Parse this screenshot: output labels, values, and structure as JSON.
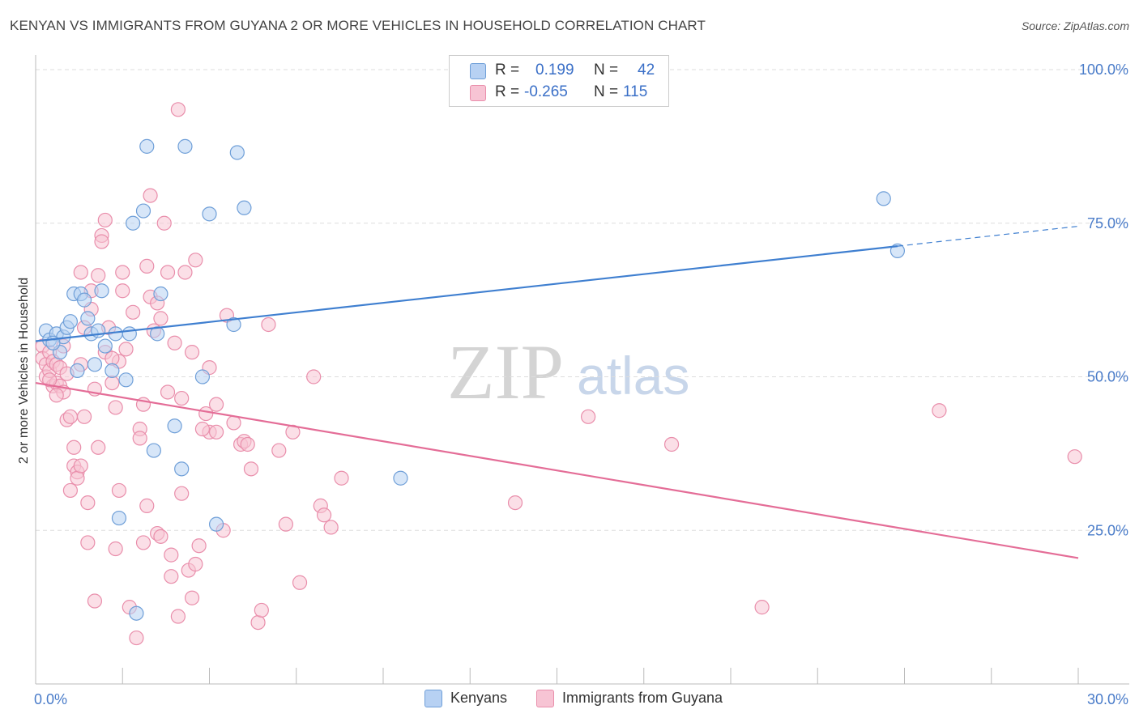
{
  "header": {
    "title": "KENYAN VS IMMIGRANTS FROM GUYANA 2 OR MORE VEHICLES IN HOUSEHOLD CORRELATION CHART",
    "source": "Source: ZipAtlas.com"
  },
  "stats": {
    "r_label": "R =",
    "n_label": "N =",
    "rows": [
      {
        "r": "0.199",
        "n": "42"
      },
      {
        "r": "-0.265",
        "n": "115"
      }
    ]
  },
  "legend": {
    "items": [
      "Kenyans",
      "Immigrants from Guyana"
    ]
  },
  "watermark": {
    "zip": "ZIP",
    "atlas": "atlas"
  },
  "colors": {
    "blue_fill": "#b7d1f3",
    "blue_stroke": "#6f9fd8",
    "blue_line": "#3f7fd0",
    "pink_fill": "#f7c4d4",
    "pink_stroke": "#e98eab",
    "pink_line": "#e46d97",
    "tick_text": "#4a7cc9"
  },
  "chart_data": {
    "type": "scatter",
    "ylabel": "2 or more Vehicles in Household",
    "xlim": [
      0,
      30
    ],
    "ylim": [
      0,
      105
    ],
    "x_tick_labels": [
      {
        "value": 0,
        "label": "0.0%"
      },
      {
        "value": 30,
        "label": "30.0%"
      }
    ],
    "y_tick_labels": [
      {
        "value": 25,
        "label": "25.0%"
      },
      {
        "value": 50,
        "label": "50.0%"
      },
      {
        "value": 75,
        "label": "75.0%"
      },
      {
        "value": 100,
        "label": "100.0%"
      }
    ],
    "grid": true,
    "series": [
      {
        "name": "Kenyans",
        "r": 0.199,
        "n": 42,
        "trend": {
          "x": [
            0,
            30
          ],
          "y": [
            55.8,
            74.5
          ],
          "solid_until_x": 24.8
        },
        "points": [
          [
            0.3,
            57.5
          ],
          [
            0.4,
            56.0
          ],
          [
            0.6,
            57.0
          ],
          [
            0.7,
            54.0
          ],
          [
            0.8,
            56.5
          ],
          [
            0.9,
            58.0
          ],
          [
            1.0,
            59.0
          ],
          [
            1.1,
            63.5
          ],
          [
            1.2,
            51.0
          ],
          [
            1.3,
            63.5
          ],
          [
            1.4,
            62.5
          ],
          [
            1.5,
            59.5
          ],
          [
            1.6,
            57.0
          ],
          [
            1.8,
            57.5
          ],
          [
            1.9,
            64.0
          ],
          [
            2.0,
            55.0
          ],
          [
            2.2,
            51.0
          ],
          [
            2.3,
            57.0
          ],
          [
            2.4,
            27.0
          ],
          [
            2.6,
            49.5
          ],
          [
            2.7,
            57.0
          ],
          [
            2.8,
            75.0
          ],
          [
            2.9,
            11.5
          ],
          [
            3.1,
            77.0
          ],
          [
            3.2,
            87.5
          ],
          [
            3.4,
            38.0
          ],
          [
            3.5,
            57.0
          ],
          [
            3.6,
            63.5
          ],
          [
            4.0,
            42.0
          ],
          [
            4.2,
            35.0
          ],
          [
            4.3,
            87.5
          ],
          [
            4.8,
            50.0
          ],
          [
            5.0,
            76.5
          ],
          [
            5.2,
            26.0
          ],
          [
            5.7,
            58.5
          ],
          [
            5.8,
            86.5
          ],
          [
            6.0,
            77.5
          ],
          [
            10.5,
            33.5
          ],
          [
            24.4,
            79.0
          ],
          [
            24.8,
            70.5
          ],
          [
            0.5,
            55.5
          ],
          [
            1.7,
            52.0
          ]
        ]
      },
      {
        "name": "Immigrants from Guyana",
        "r": -0.265,
        "n": 115,
        "trend": {
          "x": [
            0,
            30
          ],
          "y": [
            49.0,
            20.5
          ]
        },
        "points": [
          [
            0.2,
            55.0
          ],
          [
            0.2,
            53.0
          ],
          [
            0.3,
            52.0
          ],
          [
            0.3,
            50.0
          ],
          [
            0.4,
            54.0
          ],
          [
            0.4,
            51.0
          ],
          [
            0.5,
            48.5
          ],
          [
            0.5,
            52.5
          ],
          [
            0.6,
            49.0
          ],
          [
            0.6,
            52.0
          ],
          [
            0.7,
            48.5
          ],
          [
            0.7,
            51.5
          ],
          [
            0.8,
            47.5
          ],
          [
            0.8,
            55.0
          ],
          [
            0.9,
            50.5
          ],
          [
            0.9,
            43.0
          ],
          [
            1.0,
            43.5
          ],
          [
            1.0,
            31.5
          ],
          [
            1.1,
            35.5
          ],
          [
            1.1,
            38.5
          ],
          [
            1.2,
            34.5
          ],
          [
            1.2,
            33.5
          ],
          [
            1.3,
            52.0
          ],
          [
            1.3,
            67.0
          ],
          [
            1.4,
            58.0
          ],
          [
            1.4,
            43.5
          ],
          [
            1.5,
            29.5
          ],
          [
            1.5,
            23.0
          ],
          [
            1.6,
            61.0
          ],
          [
            1.6,
            64.0
          ],
          [
            1.7,
            48.0
          ],
          [
            1.7,
            13.5
          ],
          [
            1.8,
            38.5
          ],
          [
            1.8,
            66.5
          ],
          [
            1.9,
            73.0
          ],
          [
            1.9,
            72.0
          ],
          [
            2.0,
            75.5
          ],
          [
            2.0,
            54.0
          ],
          [
            2.1,
            58.0
          ],
          [
            2.2,
            49.0
          ],
          [
            2.3,
            22.0
          ],
          [
            2.3,
            45.0
          ],
          [
            2.4,
            52.5
          ],
          [
            2.4,
            31.5
          ],
          [
            2.5,
            67.0
          ],
          [
            2.5,
            64.0
          ],
          [
            2.6,
            54.5
          ],
          [
            2.7,
            12.5
          ],
          [
            2.8,
            60.5
          ],
          [
            2.9,
            7.5
          ],
          [
            3.0,
            41.5
          ],
          [
            3.0,
            40.0
          ],
          [
            3.1,
            45.5
          ],
          [
            3.1,
            23.0
          ],
          [
            3.2,
            29.0
          ],
          [
            3.2,
            68.0
          ],
          [
            3.3,
            63.0
          ],
          [
            3.3,
            79.5
          ],
          [
            3.4,
            57.5
          ],
          [
            3.5,
            62.0
          ],
          [
            3.5,
            24.5
          ],
          [
            3.6,
            59.5
          ],
          [
            3.7,
            75.0
          ],
          [
            3.8,
            67.0
          ],
          [
            3.8,
            47.5
          ],
          [
            3.9,
            21.0
          ],
          [
            3.9,
            17.5
          ],
          [
            4.0,
            55.5
          ],
          [
            4.1,
            11.0
          ],
          [
            4.1,
            93.5
          ],
          [
            4.2,
            46.5
          ],
          [
            4.2,
            31.0
          ],
          [
            4.3,
            67.0
          ],
          [
            4.4,
            18.5
          ],
          [
            4.5,
            54.0
          ],
          [
            4.5,
            14.0
          ],
          [
            4.6,
            69.0
          ],
          [
            4.6,
            19.5
          ],
          [
            4.7,
            22.5
          ],
          [
            4.9,
            44.0
          ],
          [
            5.0,
            51.5
          ],
          [
            5.0,
            41.0
          ],
          [
            5.2,
            45.5
          ],
          [
            5.2,
            41.0
          ],
          [
            5.4,
            25.0
          ],
          [
            5.5,
            60.0
          ],
          [
            5.7,
            42.5
          ],
          [
            5.9,
            39.0
          ],
          [
            6.0,
            39.5
          ],
          [
            6.2,
            35.0
          ],
          [
            6.4,
            10.0
          ],
          [
            6.5,
            12.0
          ],
          [
            6.7,
            58.5
          ],
          [
            7.0,
            38.0
          ],
          [
            7.2,
            26.0
          ],
          [
            7.4,
            41.0
          ],
          [
            7.6,
            16.5
          ],
          [
            8.0,
            50.0
          ],
          [
            8.2,
            29.0
          ],
          [
            8.3,
            27.5
          ],
          [
            8.5,
            25.5
          ],
          [
            8.8,
            33.5
          ],
          [
            13.8,
            29.5
          ],
          [
            15.9,
            43.5
          ],
          [
            18.3,
            39.0
          ],
          [
            20.9,
            12.5
          ],
          [
            26.0,
            44.5
          ],
          [
            29.9,
            37.0
          ],
          [
            0.4,
            49.5
          ],
          [
            0.6,
            47.0
          ],
          [
            1.3,
            35.5
          ],
          [
            2.2,
            53.0
          ],
          [
            3.6,
            24.0
          ],
          [
            4.8,
            41.5
          ],
          [
            6.1,
            39.0
          ]
        ]
      }
    ]
  }
}
